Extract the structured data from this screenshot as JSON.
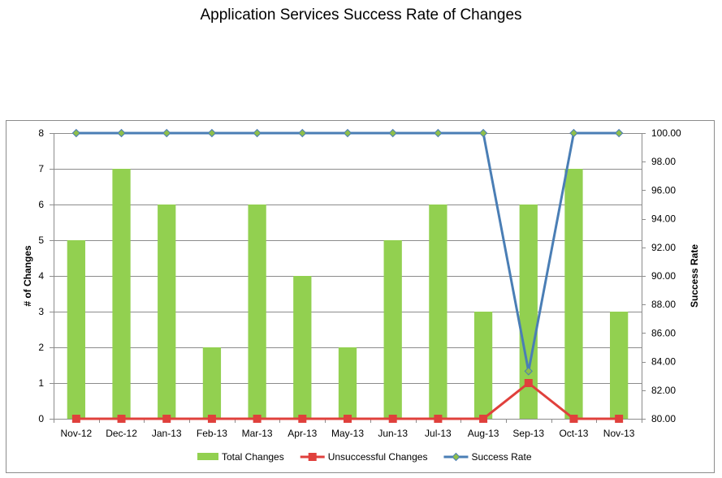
{
  "chart_data": {
    "type": "bar",
    "title": "Application Services Success Rate of Changes",
    "categories": [
      "Nov-12",
      "Dec-12",
      "Jan-13",
      "Feb-13",
      "Mar-13",
      "Apr-13",
      "May-13",
      "Jun-13",
      "Jul-13",
      "Aug-13",
      "Sep-13",
      "Oct-13",
      "Nov-13"
    ],
    "series": [
      {
        "name": "Total Changes",
        "type": "bar",
        "axis": "left",
        "color": "#92d050",
        "values": [
          5,
          7,
          6,
          2,
          6,
          4,
          2,
          5,
          6,
          3,
          6,
          7,
          3
        ]
      },
      {
        "name": "Unsuccessful Changes",
        "type": "line",
        "axis": "left",
        "color": "#e0403c",
        "values": [
          0,
          0,
          0,
          0,
          0,
          0,
          0,
          0,
          0,
          0,
          1,
          0,
          0
        ]
      },
      {
        "name": "Success Rate",
        "type": "line",
        "axis": "right",
        "color": "#4a7eb5",
        "marker_color": "#8fbf4a",
        "values": [
          100,
          100,
          100,
          100,
          100,
          100,
          100,
          100,
          100,
          100,
          83.33,
          100,
          100
        ]
      }
    ],
    "ylabel": "# of Changes",
    "y2label": "Success Rate",
    "ylim": [
      0,
      8
    ],
    "y2lim": [
      80,
      100
    ],
    "yticks": [
      "0",
      "1",
      "2",
      "3",
      "4",
      "5",
      "6",
      "7",
      "8"
    ],
    "y2ticks": [
      "80.00",
      "82.00",
      "84.00",
      "86.00",
      "88.00",
      "90.00",
      "92.00",
      "94.00",
      "96.00",
      "98.00",
      "100.00"
    ],
    "grid": true,
    "legend": "bottom"
  }
}
